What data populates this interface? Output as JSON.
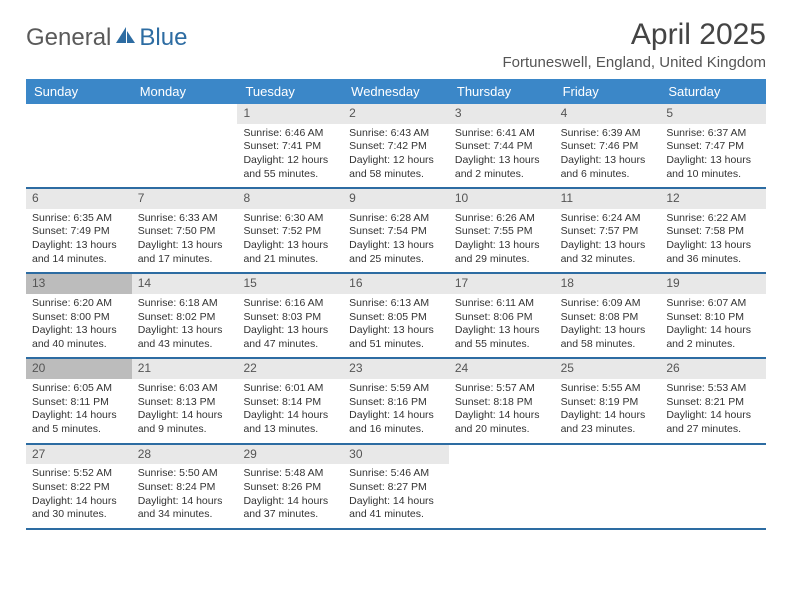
{
  "logo": {
    "part1": "General",
    "part2": "Blue"
  },
  "title": "April 2025",
  "location": "Fortuneswell, England, United Kingdom",
  "colors": {
    "header_bg": "#3b87c8",
    "header_text": "#ffffff",
    "week_border": "#2d6ca2",
    "daynum_bg": "#e8e8e8",
    "daynum_hl_bg": "#bcbcbc",
    "text": "#333333",
    "logo_gray": "#5a5a5a",
    "logo_blue": "#2d6ca2"
  },
  "fonts": {
    "title_size": 30,
    "location_size": 15,
    "dayhead_size": 13,
    "cell_size": 10.5
  },
  "day_names": [
    "Sunday",
    "Monday",
    "Tuesday",
    "Wednesday",
    "Thursday",
    "Friday",
    "Saturday"
  ],
  "highlight_days": [
    13,
    20
  ],
  "weeks": [
    [
      null,
      null,
      {
        "n": 1,
        "sr": "6:46 AM",
        "ss": "7:41 PM",
        "dl": "12 hours and 55 minutes."
      },
      {
        "n": 2,
        "sr": "6:43 AM",
        "ss": "7:42 PM",
        "dl": "12 hours and 58 minutes."
      },
      {
        "n": 3,
        "sr": "6:41 AM",
        "ss": "7:44 PM",
        "dl": "13 hours and 2 minutes."
      },
      {
        "n": 4,
        "sr": "6:39 AM",
        "ss": "7:46 PM",
        "dl": "13 hours and 6 minutes."
      },
      {
        "n": 5,
        "sr": "6:37 AM",
        "ss": "7:47 PM",
        "dl": "13 hours and 10 minutes."
      }
    ],
    [
      {
        "n": 6,
        "sr": "6:35 AM",
        "ss": "7:49 PM",
        "dl": "13 hours and 14 minutes."
      },
      {
        "n": 7,
        "sr": "6:33 AM",
        "ss": "7:50 PM",
        "dl": "13 hours and 17 minutes."
      },
      {
        "n": 8,
        "sr": "6:30 AM",
        "ss": "7:52 PM",
        "dl": "13 hours and 21 minutes."
      },
      {
        "n": 9,
        "sr": "6:28 AM",
        "ss": "7:54 PM",
        "dl": "13 hours and 25 minutes."
      },
      {
        "n": 10,
        "sr": "6:26 AM",
        "ss": "7:55 PM",
        "dl": "13 hours and 29 minutes."
      },
      {
        "n": 11,
        "sr": "6:24 AM",
        "ss": "7:57 PM",
        "dl": "13 hours and 32 minutes."
      },
      {
        "n": 12,
        "sr": "6:22 AM",
        "ss": "7:58 PM",
        "dl": "13 hours and 36 minutes."
      }
    ],
    [
      {
        "n": 13,
        "sr": "6:20 AM",
        "ss": "8:00 PM",
        "dl": "13 hours and 40 minutes."
      },
      {
        "n": 14,
        "sr": "6:18 AM",
        "ss": "8:02 PM",
        "dl": "13 hours and 43 minutes."
      },
      {
        "n": 15,
        "sr": "6:16 AM",
        "ss": "8:03 PM",
        "dl": "13 hours and 47 minutes."
      },
      {
        "n": 16,
        "sr": "6:13 AM",
        "ss": "8:05 PM",
        "dl": "13 hours and 51 minutes."
      },
      {
        "n": 17,
        "sr": "6:11 AM",
        "ss": "8:06 PM",
        "dl": "13 hours and 55 minutes."
      },
      {
        "n": 18,
        "sr": "6:09 AM",
        "ss": "8:08 PM",
        "dl": "13 hours and 58 minutes."
      },
      {
        "n": 19,
        "sr": "6:07 AM",
        "ss": "8:10 PM",
        "dl": "14 hours and 2 minutes."
      }
    ],
    [
      {
        "n": 20,
        "sr": "6:05 AM",
        "ss": "8:11 PM",
        "dl": "14 hours and 5 minutes."
      },
      {
        "n": 21,
        "sr": "6:03 AM",
        "ss": "8:13 PM",
        "dl": "14 hours and 9 minutes."
      },
      {
        "n": 22,
        "sr": "6:01 AM",
        "ss": "8:14 PM",
        "dl": "14 hours and 13 minutes."
      },
      {
        "n": 23,
        "sr": "5:59 AM",
        "ss": "8:16 PM",
        "dl": "14 hours and 16 minutes."
      },
      {
        "n": 24,
        "sr": "5:57 AM",
        "ss": "8:18 PM",
        "dl": "14 hours and 20 minutes."
      },
      {
        "n": 25,
        "sr": "5:55 AM",
        "ss": "8:19 PM",
        "dl": "14 hours and 23 minutes."
      },
      {
        "n": 26,
        "sr": "5:53 AM",
        "ss": "8:21 PM",
        "dl": "14 hours and 27 minutes."
      }
    ],
    [
      {
        "n": 27,
        "sr": "5:52 AM",
        "ss": "8:22 PM",
        "dl": "14 hours and 30 minutes."
      },
      {
        "n": 28,
        "sr": "5:50 AM",
        "ss": "8:24 PM",
        "dl": "14 hours and 34 minutes."
      },
      {
        "n": 29,
        "sr": "5:48 AM",
        "ss": "8:26 PM",
        "dl": "14 hours and 37 minutes."
      },
      {
        "n": 30,
        "sr": "5:46 AM",
        "ss": "8:27 PM",
        "dl": "14 hours and 41 minutes."
      },
      null,
      null,
      null
    ]
  ],
  "labels": {
    "sunrise": "Sunrise:",
    "sunset": "Sunset:",
    "daylight": "Daylight:"
  }
}
